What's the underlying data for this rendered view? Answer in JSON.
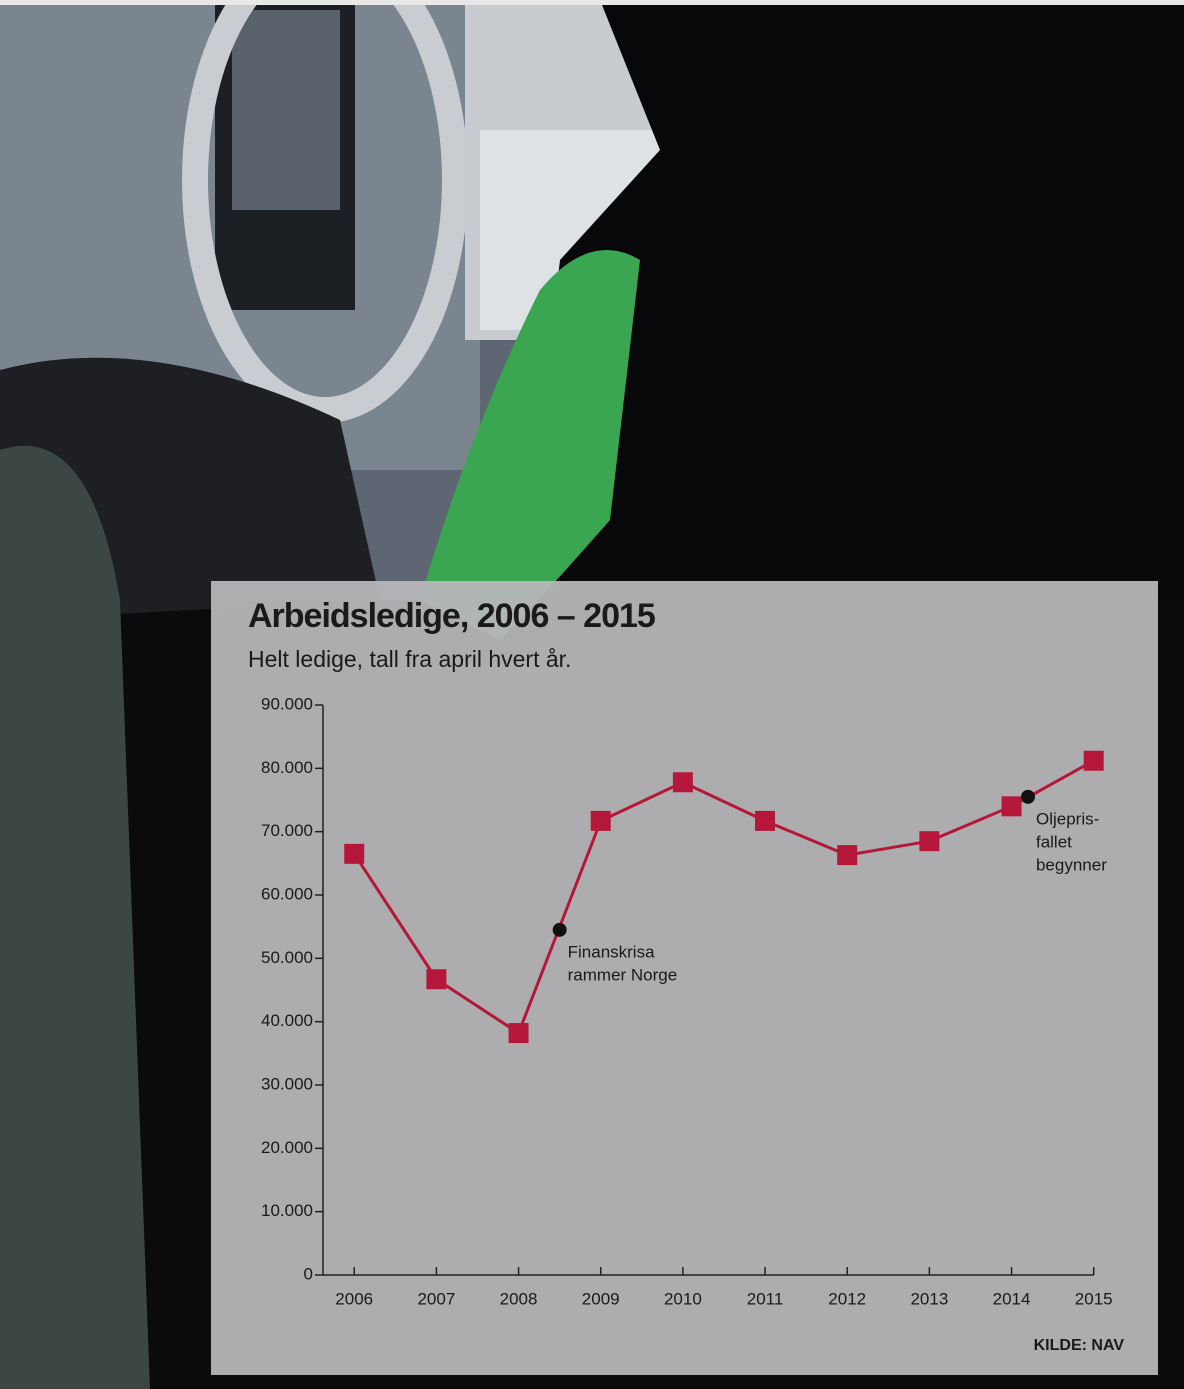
{
  "chart_data": {
    "type": "line",
    "title": "Arbeidsledige, 2006 – 2015",
    "subtitle": "Helt ledige, tall fra april hvert år.",
    "source": "KILDE: NAV",
    "x": [
      2006,
      2007,
      2008,
      2009,
      2010,
      2011,
      2012,
      2013,
      2014,
      2015
    ],
    "series": [
      {
        "name": "Helt ledige",
        "color": "#b5173a",
        "values": [
          66500,
          46700,
          38200,
          71700,
          77800,
          71700,
          66300,
          68500,
          74000,
          81200
        ]
      }
    ],
    "xlim": [
      2005.62,
      2015.32
    ],
    "xticks": [
      2006,
      2007,
      2008,
      2009,
      2010,
      2011,
      2012,
      2013,
      2014,
      2015
    ],
    "ylim": [
      0,
      90000
    ],
    "yticks": [
      0,
      {
        "value": 10000,
        "label": "10.000"
      },
      {
        "value": 20000,
        "label": "20.000"
      },
      {
        "value": 30000,
        "label": "30.000"
      },
      {
        "value": 40000,
        "label": "40.000"
      },
      {
        "value": 50000,
        "label": "50.000"
      },
      {
        "value": 60000,
        "label": "60.000"
      },
      {
        "value": 70000,
        "label": "70.000"
      },
      {
        "value": 80000,
        "label": "80.000"
      },
      {
        "value": 90000,
        "label": "90.000"
      }
    ],
    "annotations": [
      {
        "x": 2008.5,
        "y": 54500,
        "lines": [
          "Finanskrisa",
          "rammer Norge"
        ]
      },
      {
        "x": 2014.2,
        "y": 75500,
        "lines": [
          "Oljepris-",
          "fallet",
          "begynner"
        ]
      }
    ]
  }
}
